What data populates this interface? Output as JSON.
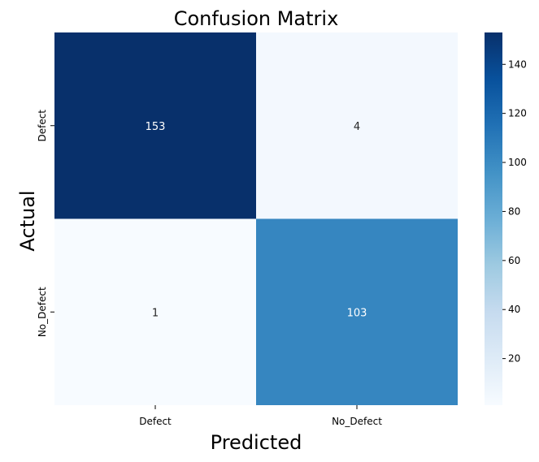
{
  "chart_data": {
    "type": "heatmap",
    "title": "Confusion Matrix",
    "xlabel": "Predicted",
    "ylabel": "Actual",
    "x_categories": [
      "Defect",
      "No_Defect"
    ],
    "y_categories": [
      "Defect",
      "No_Defect"
    ],
    "values": [
      [
        153,
        4
      ],
      [
        1,
        103
      ]
    ],
    "colormap": "Blues",
    "color_range": [
      1,
      153
    ],
    "colorbar_ticks": [
      20,
      40,
      60,
      80,
      100,
      120,
      140
    ],
    "colorbar_tick_labels": [
      "20",
      "40",
      "60",
      "80",
      "100",
      "120",
      "140"
    ],
    "colors": {
      "low": "#f7fbff",
      "high": "#08306b"
    }
  }
}
